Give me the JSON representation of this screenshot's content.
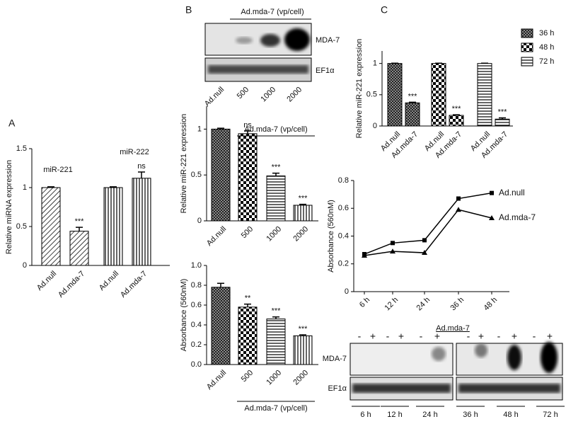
{
  "panels": [
    "A",
    "B",
    "C"
  ],
  "blot_b": {
    "header": "Ad.mda-7 (vp/cell)",
    "rows": [
      "MDA-7",
      "EF1α"
    ],
    "lanes": [
      "Ad.null",
      "500",
      "1000",
      "2000"
    ]
  },
  "blot_c": {
    "header": "Ad.mda-7",
    "signs": [
      "-",
      "+",
      "-",
      "+",
      "-",
      "+",
      "-",
      "+",
      "-",
      "+",
      "-",
      "+"
    ],
    "rows": [
      "MDA-7",
      "EF1α"
    ],
    "timepoints": [
      "6 h",
      "12 h",
      "24 h",
      "36 h",
      "48 h",
      "72 h"
    ]
  },
  "chart_data": [
    {
      "type": "bar",
      "y_label": "Relative miRNA expression",
      "group_labels": [
        "miR-221",
        "miR-222"
      ],
      "categories": [
        "Ad.null",
        "Ad.mda-7",
        "Ad.null",
        "Ad.mda-7"
      ],
      "values": [
        1.0,
        0.44,
        1.0,
        1.12
      ],
      "errors": [
        0.01,
        0.05,
        0.01,
        0.08
      ],
      "annotations": [
        null,
        "***",
        null,
        "ns"
      ],
      "color": "#000000",
      "ylim": [
        0,
        1.5
      ],
      "yticks": [
        0,
        0.5,
        1,
        1.5
      ]
    },
    {
      "type": "bar",
      "y_label": "Relative miR-221 expression",
      "x_label": "Ad.mda-7 (vp/cell)",
      "categories": [
        "Ad.null",
        "500",
        "1000",
        "2000"
      ],
      "values": [
        1.0,
        0.95,
        0.49,
        0.17
      ],
      "errors": [
        0.01,
        0.03,
        0.03,
        0.01
      ],
      "annotations": [
        null,
        "ns",
        "***",
        "***"
      ],
      "color": "#000000",
      "ylim": [
        0,
        1.25
      ],
      "yticks": [
        0,
        0.5,
        1
      ]
    },
    {
      "type": "bar",
      "y_label": "Absorbance (560nM)",
      "x_label": "Ad.mda-7 (vp/cell)",
      "categories": [
        "Ad.null",
        "500",
        "1000",
        "2000"
      ],
      "values": [
        0.78,
        0.58,
        0.46,
        0.29
      ],
      "errors": [
        0.04,
        0.03,
        0.02,
        0.01
      ],
      "annotations": [
        null,
        "**",
        "***",
        "***"
      ],
      "color": "#000000",
      "ylim": [
        0,
        1.0
      ],
      "yticks": [
        {
          "value": 0,
          "label": "0.0"
        },
        0.2,
        0.4,
        0.6,
        0.8,
        {
          "value": 1,
          "label": "1.0"
        }
      ]
    },
    {
      "type": "grouped_bar",
      "y_label": "Relative miR-221 expression",
      "categories": [
        "Ad.null",
        "Ad.mda-7"
      ],
      "series": [
        {
          "name": "36 h",
          "color": "#000000",
          "values": [
            1.0,
            0.37
          ],
          "errors": [
            0.005,
            0.01
          ],
          "annotations": [
            null,
            "***"
          ]
        },
        {
          "name": "48 h",
          "color": "#000000",
          "values": [
            1.0,
            0.17
          ],
          "errors": [
            0.005,
            0.01
          ],
          "annotations": [
            null,
            "***"
          ]
        },
        {
          "name": "72 h",
          "color": "#000000",
          "values": [
            1.0,
            0.11
          ],
          "errors": [
            0.005,
            0.02
          ],
          "annotations": [
            null,
            "***"
          ]
        }
      ],
      "ylim": [
        0,
        1.2
      ],
      "yticks": [
        0,
        0.5,
        1
      ],
      "legend": "right"
    },
    {
      "type": "line",
      "y_label": "Absorbance (560nM)",
      "categories": [
        "6 h",
        "12 h",
        "24 h",
        "36 h",
        "48 h"
      ],
      "series": [
        {
          "name": "Ad.null",
          "color": "#000000",
          "values": [
            0.27,
            0.35,
            0.37,
            0.67,
            0.71
          ]
        },
        {
          "name": "Ad.mda-7",
          "color": "#000000",
          "values": [
            0.26,
            0.29,
            0.28,
            0.59,
            0.53
          ]
        }
      ],
      "ylim": [
        0,
        0.8
      ],
      "yticks": [
        0,
        0.2,
        0.4,
        0.6,
        0.8
      ]
    }
  ]
}
